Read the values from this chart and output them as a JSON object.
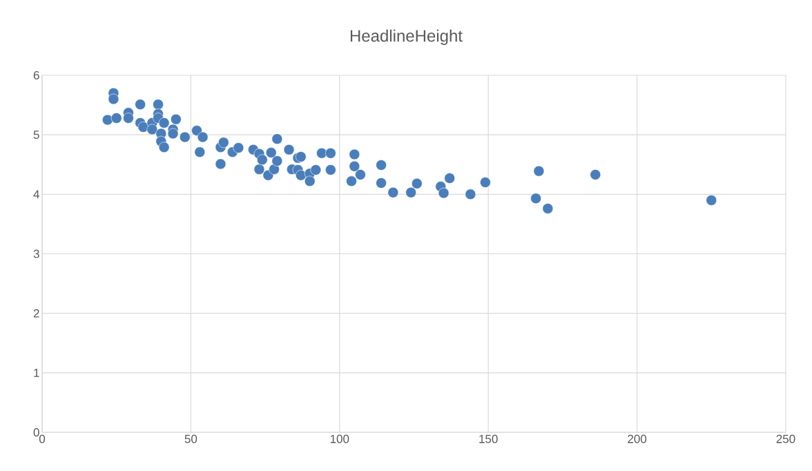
{
  "chart_data": {
    "type": "scatter",
    "title": "HeadlineHeight",
    "color": "#4a7ebb",
    "grid": true,
    "xlim": [
      0,
      250
    ],
    "xticks": [
      0,
      50,
      100,
      150,
      200,
      250
    ],
    "ylim": [
      0,
      6
    ],
    "yticks": [
      0,
      1,
      2,
      3,
      4,
      5,
      6
    ],
    "x": [
      22,
      24,
      24,
      25,
      29,
      29,
      33,
      33,
      34,
      37,
      37,
      39,
      39,
      39,
      40,
      40,
      41,
      41,
      44,
      44,
      45,
      48,
      52,
      53,
      54,
      60,
      60,
      61,
      64,
      66,
      71,
      73,
      73,
      74,
      76,
      77,
      78,
      79,
      79,
      83,
      84,
      86,
      86,
      87,
      87,
      90,
      90,
      92,
      94,
      97,
      97,
      104,
      105,
      105,
      107,
      114,
      114,
      118,
      124,
      126,
      134,
      135,
      137,
      144,
      149,
      166,
      167,
      170,
      186,
      225
    ],
    "values": [
      5.25,
      5.7,
      5.6,
      5.28,
      5.37,
      5.28,
      5.51,
      5.2,
      5.13,
      5.2,
      5.09,
      5.51,
      5.35,
      5.28,
      5.02,
      4.89,
      5.2,
      4.79,
      5.09,
      5.02,
      5.26,
      4.96,
      5.07,
      4.71,
      4.96,
      4.79,
      4.51,
      4.87,
      4.71,
      4.78,
      4.75,
      4.68,
      4.42,
      4.58,
      4.32,
      4.7,
      4.42,
      4.93,
      4.56,
      4.75,
      4.42,
      4.61,
      4.41,
      4.63,
      4.32,
      4.35,
      4.22,
      4.41,
      4.69,
      4.69,
      4.41,
      4.22,
      4.67,
      4.47,
      4.33,
      4.49,
      4.19,
      4.03,
      4.03,
      4.18,
      4.13,
      4.02,
      4.27,
      4.0,
      4.2,
      3.93,
      4.39,
      3.76,
      4.33,
      3.9
    ]
  }
}
